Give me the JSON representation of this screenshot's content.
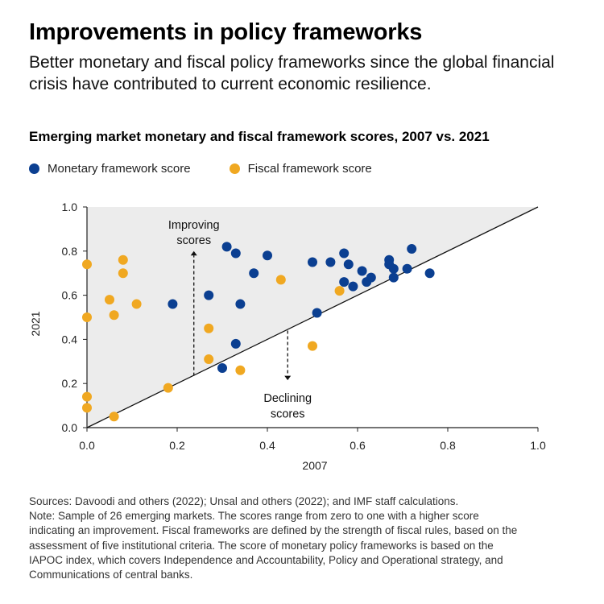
{
  "header": {
    "title": "Improvements in policy frameworks",
    "subtitle": "Better monetary and fiscal policy frameworks since the global financial crisis have contributed to current economic resilience."
  },
  "colors": {
    "monetary": "#0b3f91",
    "fiscal": "#f0a821",
    "plot_bg": "#ececec"
  },
  "chart_data": {
    "type": "scatter",
    "title": "Emerging market monetary and fiscal framework scores, 2007 vs. 2021",
    "xlabel": "2007",
    "ylabel": "2021",
    "xlim": [
      0,
      1
    ],
    "ylim": [
      0,
      1
    ],
    "xticks": [
      "0.0",
      "0.2",
      "0.4",
      "0.6",
      "0.8",
      "1.0"
    ],
    "yticks": [
      "0.0",
      "0.2",
      "0.4",
      "0.6",
      "0.8",
      "1.0"
    ],
    "reference_line": "45-degree line (2021 = 2007)",
    "annotations": {
      "improving_line1": "Improving",
      "improving_line2": "scores",
      "declining_line1": "Declining",
      "declining_line2": "scores"
    },
    "series": [
      {
        "name": "Monetary framework score",
        "points": [
          [
            0.19,
            0.56
          ],
          [
            0.27,
            0.6
          ],
          [
            0.3,
            0.27
          ],
          [
            0.31,
            0.82
          ],
          [
            0.33,
            0.79
          ],
          [
            0.33,
            0.38
          ],
          [
            0.34,
            0.56
          ],
          [
            0.37,
            0.7
          ],
          [
            0.4,
            0.78
          ],
          [
            0.5,
            0.75
          ],
          [
            0.51,
            0.52
          ],
          [
            0.54,
            0.75
          ],
          [
            0.57,
            0.79
          ],
          [
            0.58,
            0.74
          ],
          [
            0.57,
            0.66
          ],
          [
            0.59,
            0.64
          ],
          [
            0.61,
            0.71
          ],
          [
            0.62,
            0.66
          ],
          [
            0.63,
            0.68
          ],
          [
            0.67,
            0.76
          ],
          [
            0.67,
            0.74
          ],
          [
            0.68,
            0.72
          ],
          [
            0.68,
            0.68
          ],
          [
            0.71,
            0.72
          ],
          [
            0.72,
            0.81
          ],
          [
            0.76,
            0.7
          ]
        ]
      },
      {
        "name": "Fiscal framework score",
        "points": [
          [
            0.0,
            0.74
          ],
          [
            0.0,
            0.5
          ],
          [
            0.0,
            0.14
          ],
          [
            0.0,
            0.09
          ],
          [
            0.05,
            0.58
          ],
          [
            0.06,
            0.51
          ],
          [
            0.06,
            0.05
          ],
          [
            0.08,
            0.76
          ],
          [
            0.08,
            0.7
          ],
          [
            0.11,
            0.56
          ],
          [
            0.18,
            0.18
          ],
          [
            0.27,
            0.45
          ],
          [
            0.27,
            0.31
          ],
          [
            0.34,
            0.26
          ],
          [
            0.43,
            0.67
          ],
          [
            0.5,
            0.37
          ],
          [
            0.56,
            0.62
          ]
        ]
      }
    ]
  },
  "notes": {
    "sources": "Sources: Davoodi and others (2022); Unsal and others (2022); and IMF staff calculations.",
    "note": "Note: Sample of 26 emerging markets. The scores range from zero to one with a higher score indicating an improvement. Fiscal frameworks are defined by the strength of fiscal rules, based on the assessment of five institutional criteria. The score of monetary policy frameworks is based on the IAPOC index, which covers Independence and Accountability, Policy and Operational strategy, and Communications of central banks."
  }
}
